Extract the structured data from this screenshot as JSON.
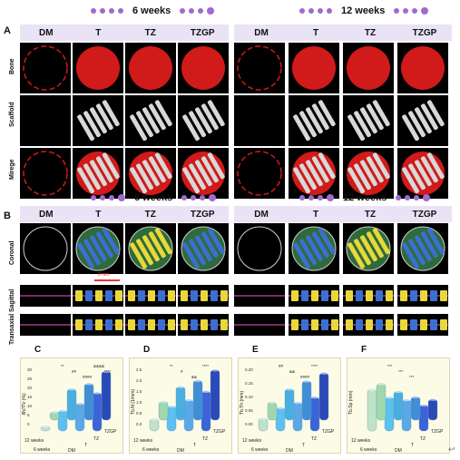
{
  "panels": {
    "A": "A",
    "B": "B",
    "C": "C",
    "D": "D",
    "E": "E",
    "F": "F"
  },
  "timepoints": [
    "6 weeks",
    "12 weeks"
  ],
  "groups": [
    "DM",
    "T",
    "TZ",
    "TZGP"
  ],
  "rows_A": [
    "Bone",
    "Scaffold",
    "Mirege"
  ],
  "rows_B": [
    "Coronal",
    "Sagittal",
    "Transaxial"
  ],
  "scale_bar": "2 mm",
  "charts": {
    "C": {
      "ylabel": "BV/TV (%)",
      "yticks": [
        "0",
        "5",
        "10",
        "15",
        "20",
        "25",
        "30"
      ]
    },
    "D": {
      "ylabel": "Tb.N (1/mm)",
      "yticks": [
        "0.0",
        "0.5",
        "1.0",
        "1.5",
        "2.0",
        "2.5"
      ]
    },
    "E": {
      "ylabel": "Tb.Th (mm)",
      "yticks": [
        "0.00",
        "0.05",
        "0.10",
        "0.15",
        "0.20"
      ]
    },
    "F": {
      "ylabel": "Tb.Sp (mm)",
      "yticks": []
    }
  },
  "chart_categories": {
    "weeks": [
      "12 weeks",
      "6 weeks"
    ],
    "groups": [
      "DM",
      "T",
      "TZ",
      "TZGP"
    ]
  },
  "colors": {
    "bone": "#d11a1a",
    "scaffold": "#d8d8d8",
    "accent": "#a06ad0",
    "header_bg": "#e9e3f5"
  },
  "chart_data": [
    {
      "type": "bar",
      "title": "",
      "ylabel": "BV/TV (%)",
      "categories": [
        "DM",
        "T",
        "TZ",
        "TZGP"
      ],
      "series": [
        {
          "name": "6 weeks",
          "values": [
            3,
            12,
            16,
            22
          ]
        },
        {
          "name": "12 weeks",
          "values": [
            5,
            18,
            21,
            28
          ]
        }
      ],
      "ylim": [
        0,
        30
      ],
      "annotations": [
        "**",
        "##",
        "####",
        "&&&&",
        "****"
      ]
    },
    {
      "type": "bar",
      "title": "",
      "ylabel": "Tb.N (1/mm)",
      "categories": [
        "DM",
        "T",
        "TZ",
        "TZGP"
      ],
      "series": [
        {
          "name": "6 weeks",
          "values": [
            0.6,
            1.2,
            1.5,
            1.9
          ]
        },
        {
          "name": "12 weeks",
          "values": [
            0.9,
            1.6,
            1.9,
            2.4
          ]
        }
      ],
      "ylim": [
        0,
        2.5
      ],
      "annotations": [
        "**",
        "#",
        "&&",
        "****"
      ]
    },
    {
      "type": "bar",
      "title": "",
      "ylabel": "Tb.Th (mm)",
      "categories": [
        "DM",
        "T",
        "TZ",
        "TZGP"
      ],
      "series": [
        {
          "name": "6 weeks",
          "values": [
            0.05,
            0.09,
            0.11,
            0.13
          ]
        },
        {
          "name": "12 weeks",
          "values": [
            0.07,
            0.12,
            0.15,
            0.18
          ]
        }
      ],
      "ylim": [
        0,
        0.2
      ],
      "annotations": [
        "##",
        "&&",
        "####",
        "****"
      ]
    },
    {
      "type": "bar",
      "title": "",
      "ylabel": "Tb.Sp (mm)",
      "categories": [
        "DM",
        "T",
        "TZ",
        "TZGP"
      ],
      "series": [
        {
          "name": "6 weeks",
          "values": [
            1.6,
            1.3,
            1.2,
            1.0
          ]
        },
        {
          "name": "12 weeks",
          "values": [
            1.4,
            1.1,
            0.9,
            0.8
          ]
        }
      ],
      "annotations": [
        "***",
        "***",
        "***"
      ]
    }
  ]
}
